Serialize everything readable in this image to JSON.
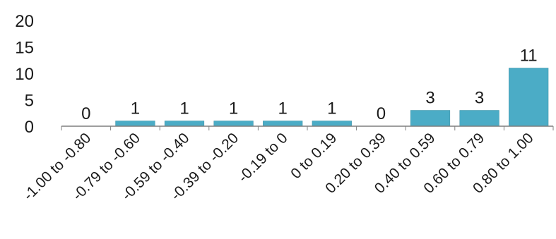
{
  "chart_data": {
    "type": "bar",
    "title": "",
    "xlabel": "",
    "ylabel": "",
    "categories": [
      "-1.00 to -0.80",
      "-0.79 to -0.60",
      "-0.59 to -0.40",
      "-0.39 to -0.20",
      "-0.19 to 0",
      "0 to 0.19",
      "0.20 to 0.39",
      "0.40 to 0.59",
      "0.60 to 0.79",
      "0.80 to 1.00"
    ],
    "values": [
      0,
      1,
      1,
      1,
      1,
      1,
      0,
      3,
      3,
      11
    ],
    "data_labels": [
      "0",
      "1",
      "1",
      "1",
      "1",
      "1",
      "0",
      "3",
      "3",
      "11"
    ],
    "yticks": [
      0,
      5,
      10,
      15,
      20
    ],
    "ytick_labels": [
      "0",
      "5",
      "10",
      "15",
      "20"
    ],
    "ylim": [
      0,
      20
    ],
    "grid": false,
    "legend": "none",
    "bar_color": "#4bacc6"
  }
}
